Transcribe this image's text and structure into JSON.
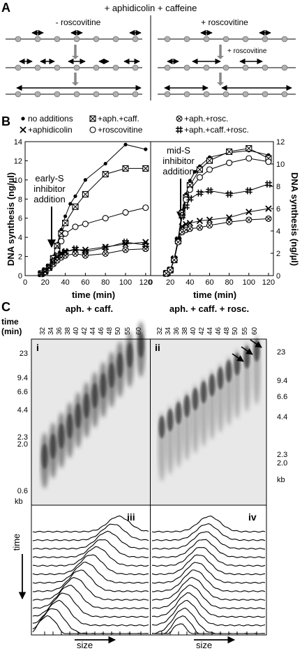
{
  "panel_a": {
    "letter": "A",
    "title": "+ aphidicolin + caffeine",
    "left_label": "- roscovitine",
    "right_label": "+ roscovitine",
    "arrow_label": "+ roscovitine"
  },
  "panel_b": {
    "letter": "B",
    "legend": {
      "no_add": "no additions",
      "aph": "+aphidicolin",
      "aph_caff": "+aph.+caff.",
      "rosc": "+roscovitine",
      "aph_rosc": "+aph.+rosc.",
      "aph_caff_rosc": "+aph.+caff.+rosc."
    },
    "ylabel_left": "DNA synthesis (ng/µl)",
    "ylabel_right": "DNA synthesis (ng/µl)",
    "xlabel": "time (min)",
    "annot_left": [
      "early-S",
      "inhibitor",
      "addition"
    ],
    "annot_right": [
      "mid-S",
      "inhibitor",
      "addition"
    ],
    "left_yticks": [
      "0",
      "2",
      "4",
      "6",
      "8",
      "10",
      "12",
      "14"
    ],
    "right_yticks": [
      "0",
      "2",
      "4",
      "6",
      "8",
      "10",
      "12"
    ],
    "left_xticks": [
      "0",
      "20",
      "40",
      "60",
      "80",
      "100",
      "120"
    ],
    "right_xticks": [
      "0",
      "20",
      "40",
      "60",
      "80",
      "100",
      "120"
    ]
  },
  "chart_data": [
    {
      "type": "line",
      "panel": "B-left",
      "xlabel": "time (min)",
      "ylabel": "DNA synthesis (ng/µl)",
      "xlim": [
        0,
        125
      ],
      "ylim": [
        0,
        14
      ],
      "series": [
        {
          "name": "no additions",
          "marker": "dot",
          "points": [
            [
              16,
              0.2
            ],
            [
              20,
              0.5
            ],
            [
              24,
              1.0
            ],
            [
              28,
              2.0
            ],
            [
              32,
              3.3
            ],
            [
              36,
              4.8
            ],
            [
              40,
              6.2
            ],
            [
              45,
              7.5
            ],
            [
              50,
              8.3
            ],
            [
              60,
              10.0
            ],
            [
              80,
              11.7
            ],
            [
              100,
              13.7
            ],
            [
              120,
              13.2
            ]
          ]
        },
        {
          "name": "+aph.+caff.",
          "marker": "boxx",
          "points": [
            [
              16,
              0.2
            ],
            [
              20,
              0.5
            ],
            [
              24,
              0.9
            ],
            [
              28,
              1.8
            ],
            [
              32,
              3.1
            ],
            [
              36,
              4.4
            ],
            [
              40,
              5.5
            ],
            [
              50,
              7.2
            ],
            [
              60,
              8.5
            ],
            [
              80,
              10.6
            ],
            [
              100,
              11.2
            ],
            [
              120,
              11.2
            ]
          ]
        },
        {
          "name": "+roscovitine",
          "marker": "circle",
          "points": [
            [
              16,
              0.2
            ],
            [
              20,
              0.5
            ],
            [
              24,
              0.9
            ],
            [
              28,
              1.5
            ],
            [
              32,
              2.6
            ],
            [
              36,
              3.6
            ],
            [
              40,
              4.4
            ],
            [
              50,
              5.1
            ],
            [
              60,
              5.4
            ],
            [
              80,
              6.0
            ],
            [
              100,
              6.6
            ],
            [
              120,
              7.1
            ]
          ]
        },
        {
          "name": "+aphidicolin",
          "marker": "x",
          "points": [
            [
              16,
              0.2
            ],
            [
              20,
              0.4
            ],
            [
              24,
              0.8
            ],
            [
              28,
              1.3
            ],
            [
              32,
              1.9
            ],
            [
              36,
              2.3
            ],
            [
              40,
              2.5
            ],
            [
              50,
              2.7
            ],
            [
              60,
              2.7
            ],
            [
              80,
              3.0
            ],
            [
              100,
              3.3
            ],
            [
              120,
              3.5
            ]
          ]
        },
        {
          "name": "+aph.+rosc.",
          "marker": "circlex",
          "points": [
            [
              16,
              0.2
            ],
            [
              20,
              0.4
            ],
            [
              24,
              0.8
            ],
            [
              28,
              1.2
            ],
            [
              32,
              1.6
            ],
            [
              36,
              1.9
            ],
            [
              40,
              2.1
            ],
            [
              50,
              2.3
            ],
            [
              60,
              2.1
            ],
            [
              80,
              2.3
            ],
            [
              100,
              2.7
            ],
            [
              120,
              2.8
            ]
          ]
        },
        {
          "name": "+aph.+caff.+rosc.",
          "marker": "hash",
          "points": [
            [
              16,
              0.2
            ],
            [
              20,
              0.5
            ],
            [
              24,
              0.9
            ],
            [
              28,
              1.5
            ],
            [
              32,
              2.0
            ],
            [
              36,
              2.3
            ],
            [
              40,
              2.5
            ],
            [
              50,
              2.8
            ],
            [
              60,
              2.5
            ],
            [
              80,
              2.9
            ],
            [
              100,
              3.5
            ],
            [
              120,
              3.2
            ]
          ]
        }
      ]
    },
    {
      "type": "line",
      "panel": "B-right",
      "xlabel": "time (min)",
      "ylabel": "DNA synthesis (ng/µl)",
      "xlim": [
        0,
        125
      ],
      "ylim": [
        0,
        12
      ],
      "series": [
        {
          "name": "no additions",
          "marker": "dot",
          "points": [
            [
              16,
              0.2
            ],
            [
              20,
              0.5
            ],
            [
              24,
              1.5
            ],
            [
              28,
              3.3
            ],
            [
              32,
              5.8
            ],
            [
              36,
              7.3
            ],
            [
              40,
              8.5
            ],
            [
              45,
              9.3
            ],
            [
              50,
              9.8
            ],
            [
              60,
              10.6
            ],
            [
              80,
              11.0
            ],
            [
              100,
              11.2
            ],
            [
              120,
              10.8
            ]
          ]
        },
        {
          "name": "+aph.+caff.",
          "marker": "boxx",
          "points": [
            [
              16,
              0.2
            ],
            [
              20,
              0.5
            ],
            [
              24,
              1.4
            ],
            [
              28,
              3.1
            ],
            [
              32,
              5.6
            ],
            [
              36,
              7.0
            ],
            [
              40,
              8.1
            ],
            [
              50,
              9.5
            ],
            [
              60,
              10.3
            ],
            [
              80,
              11.1
            ],
            [
              100,
              11.4
            ],
            [
              120,
              10.5
            ]
          ]
        },
        {
          "name": "+roscovitine",
          "marker": "circle",
          "points": [
            [
              16,
              0.2
            ],
            [
              20,
              0.5
            ],
            [
              24,
              1.4
            ],
            [
              28,
              3.1
            ],
            [
              32,
              5.4
            ],
            [
              36,
              6.8
            ],
            [
              40,
              7.7
            ],
            [
              50,
              8.8
            ],
            [
              60,
              9.5
            ],
            [
              80,
              10.1
            ],
            [
              100,
              10.5
            ],
            [
              120,
              10.2
            ]
          ]
        },
        {
          "name": "+aph.+caff.+rosc.",
          "marker": "hash",
          "points": [
            [
              16,
              0.2
            ],
            [
              20,
              0.5
            ],
            [
              24,
              1.5
            ],
            [
              28,
              3.2
            ],
            [
              32,
              5.3
            ],
            [
              36,
              6.2
            ],
            [
              40,
              6.9
            ],
            [
              50,
              7.4
            ],
            [
              60,
              7.6
            ],
            [
              80,
              7.3
            ],
            [
              100,
              7.6
            ],
            [
              120,
              8.2
            ]
          ]
        },
        {
          "name": "+aphidicolin",
          "marker": "x",
          "points": [
            [
              16,
              0.2
            ],
            [
              20,
              0.5
            ],
            [
              24,
              1.5
            ],
            [
              28,
              3.2
            ],
            [
              32,
              4.4
            ],
            [
              36,
              4.6
            ],
            [
              40,
              4.7
            ],
            [
              50,
              4.9
            ],
            [
              60,
              5.0
            ],
            [
              80,
              5.2
            ],
            [
              100,
              5.7
            ],
            [
              120,
              6.0
            ]
          ]
        },
        {
          "name": "+aph.+rosc.",
          "marker": "circlex",
          "points": [
            [
              16,
              0.2
            ],
            [
              20,
              0.5
            ],
            [
              24,
              1.4
            ],
            [
              28,
              3.0
            ],
            [
              32,
              3.9
            ],
            [
              36,
              4.1
            ],
            [
              40,
              4.2
            ],
            [
              50,
              4.3
            ],
            [
              60,
              4.5
            ],
            [
              80,
              4.8
            ],
            [
              100,
              5.0
            ],
            [
              120,
              5.1
            ]
          ]
        }
      ]
    }
  ],
  "panel_c": {
    "letter": "C",
    "time_label": [
      "time",
      "(min)"
    ],
    "gel_left_title": "aph. + caff.",
    "gel_right_title": "aph. + caff. + rosc.",
    "lanes": [
      "32",
      "34",
      "36",
      "38",
      "40",
      "42",
      "44",
      "46",
      "48",
      "50",
      "55",
      "60"
    ],
    "left_markers": [
      "23",
      "9.4",
      "6.6",
      "4.4",
      "2.3",
      "2.0",
      "0.6"
    ],
    "right_markers": [
      "23",
      "9.4",
      "6.6",
      "4.4",
      "2.3",
      "2.0"
    ],
    "kb": "kb",
    "sub_i": "i",
    "sub_ii": "ii",
    "sub_iii": "iii",
    "sub_iv": "iv",
    "time_axis": "time",
    "size_axis": "size"
  }
}
